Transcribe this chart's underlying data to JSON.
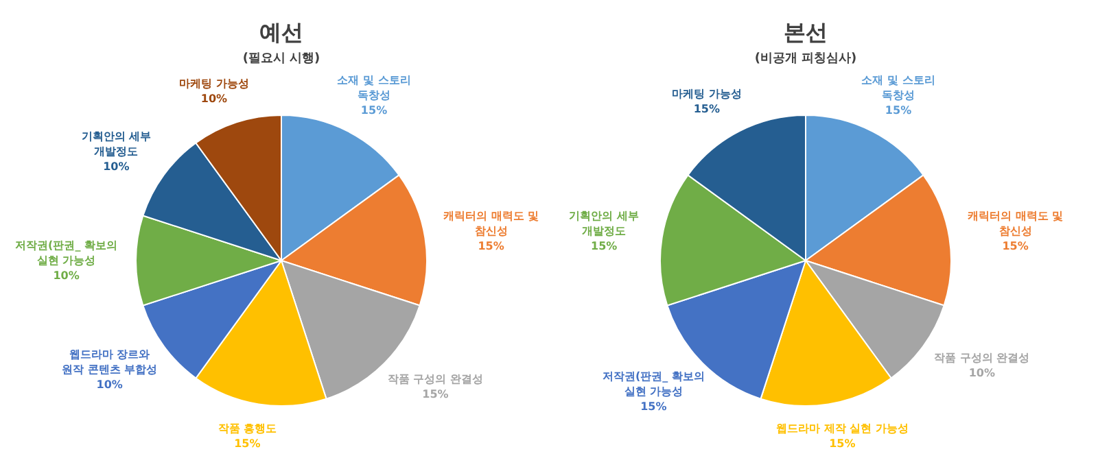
{
  "chart_data": [
    {
      "type": "pie",
      "title": "예선",
      "subtitle": "(필요시 시행)",
      "categories": [
        "소재 및 스토리 독창성",
        "캐릭터의 매력도 및 참신성",
        "작품 구성의 완결성",
        "작품 흥행도",
        "웹드라마 장르와 원작 콘텐츠 부합성",
        "저작권(판권_ 확보의 실현 가능성",
        "기획안의 세부 개발정도",
        "마케팅 가능성"
      ],
      "values": [
        15,
        15,
        15,
        15,
        10,
        10,
        10,
        10
      ],
      "colors": [
        "#5b9bd5",
        "#ed7d31",
        "#a5a5a5",
        "#ffc000",
        "#4472c4",
        "#70ad47",
        "#255e91",
        "#9e480e"
      ],
      "value_labels": [
        "15%",
        "15%",
        "15%",
        "15%",
        "10%",
        "10%",
        "10%",
        "10%"
      ]
    },
    {
      "type": "pie",
      "title": "본선",
      "subtitle": "(비공개 피칭심사)",
      "categories": [
        "소재 및 스토리 독창성",
        "캐릭터의 매력도 및 참신성",
        "작품 구성의 완결성",
        "웹드라마 제작 실현 가능성",
        "저작권(판권_ 확보의 실현 가능성",
        "기획안의 세부 개발정도",
        "마케팅 가능성"
      ],
      "values": [
        15,
        15,
        10,
        15,
        15,
        15,
        15
      ],
      "colors": [
        "#5b9bd5",
        "#ed7d31",
        "#a5a5a5",
        "#ffc000",
        "#4472c4",
        "#70ad47",
        "#255e91"
      ],
      "value_labels": [
        "15%",
        "15%",
        "10%",
        "15%",
        "15%",
        "15%",
        "15%"
      ]
    }
  ]
}
